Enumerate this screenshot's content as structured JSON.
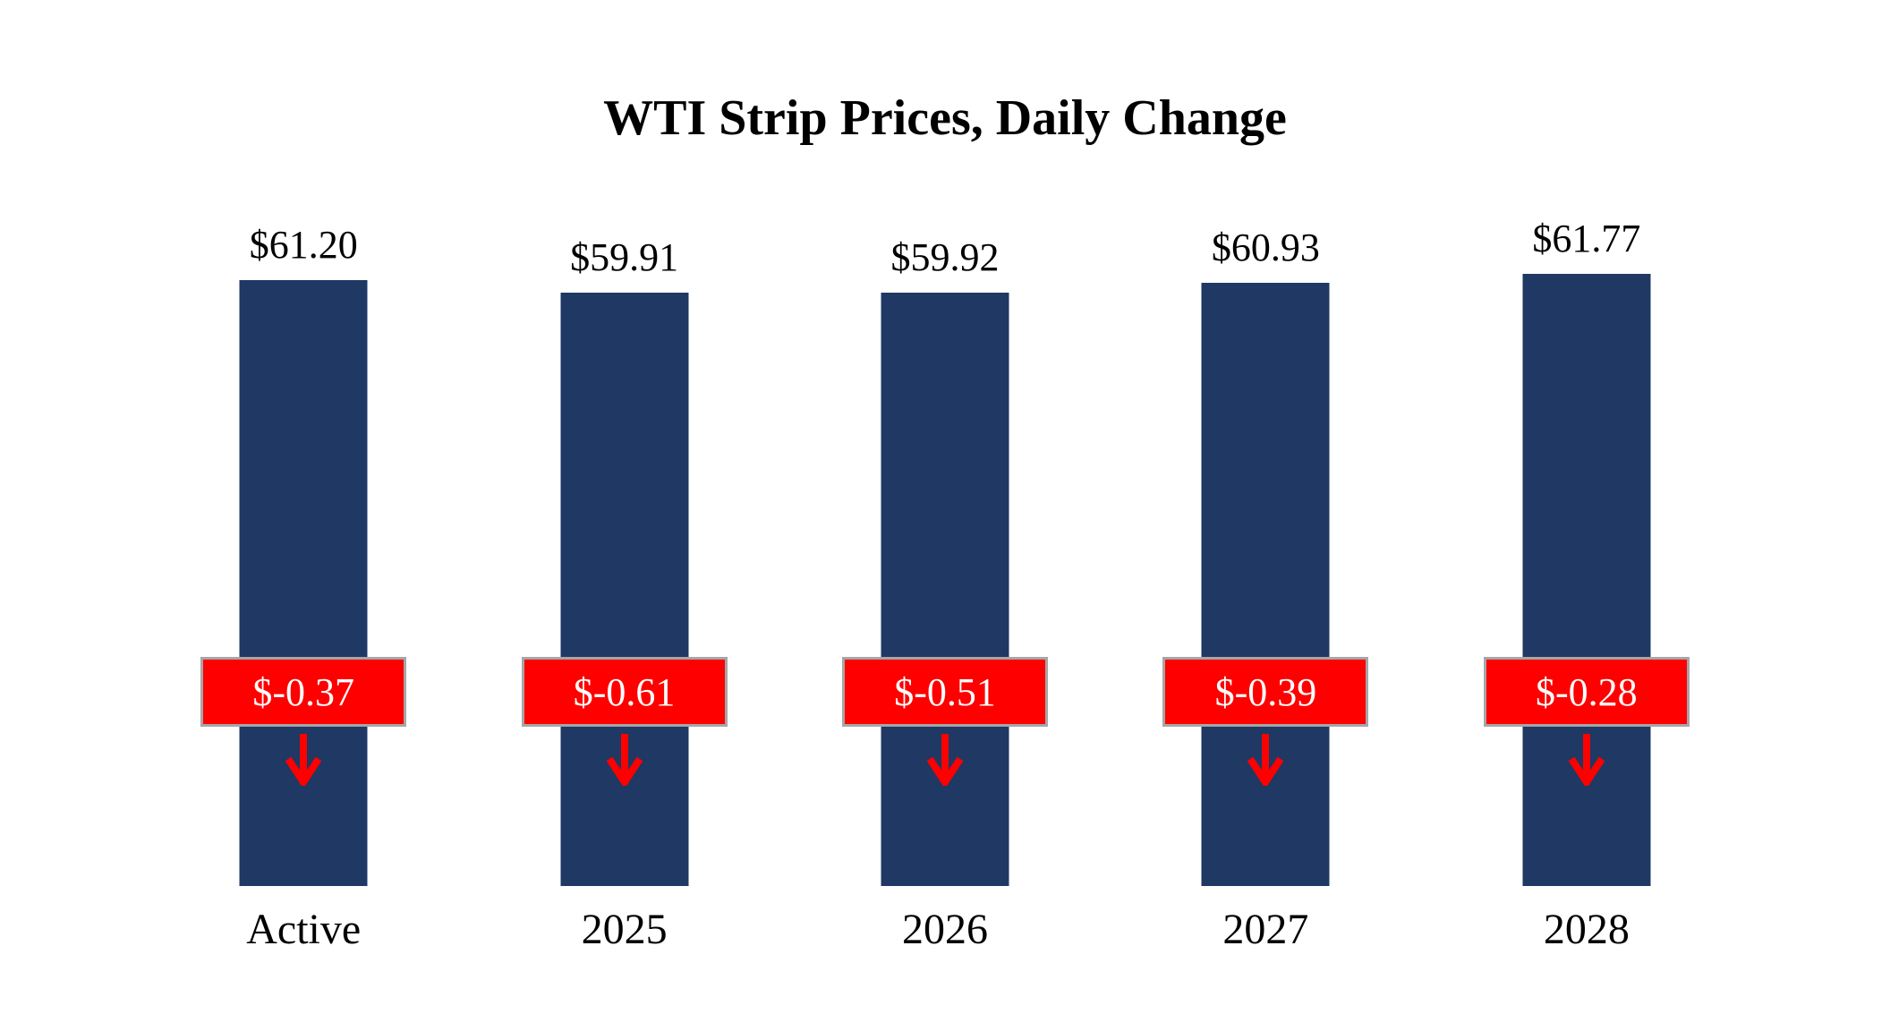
{
  "title": "WTI Strip Prices, Daily Change",
  "chart_data": {
    "type": "bar",
    "categories": [
      "Active",
      "2025",
      "2026",
      "2027",
      "2028"
    ],
    "series": [
      {
        "name": "WTI Strip Price",
        "values": [
          61.2,
          59.91,
          59.92,
          60.93,
          61.77
        ]
      },
      {
        "name": "Daily Change",
        "values": [
          -0.37,
          -0.61,
          -0.51,
          -0.39,
          -0.28
        ]
      }
    ],
    "price_labels": [
      "$61.20",
      "$59.91",
      "$59.92",
      "$60.93",
      "$61.77"
    ],
    "change_labels": [
      "$-0.37",
      "$-0.61",
      "$-0.51",
      "$-0.39",
      "$-0.28"
    ],
    "title": "WTI Strip Prices, Daily Change",
    "xlabel": "",
    "ylabel": "",
    "ylim": [
      0,
      62
    ],
    "grid": false,
    "legend": "none",
    "colors": {
      "bar": "#1F3864",
      "change_box": "#FF0000",
      "change_text": "#FFFFFF",
      "box_border": "#A6A6A6",
      "arrow": "#FF0000"
    }
  }
}
